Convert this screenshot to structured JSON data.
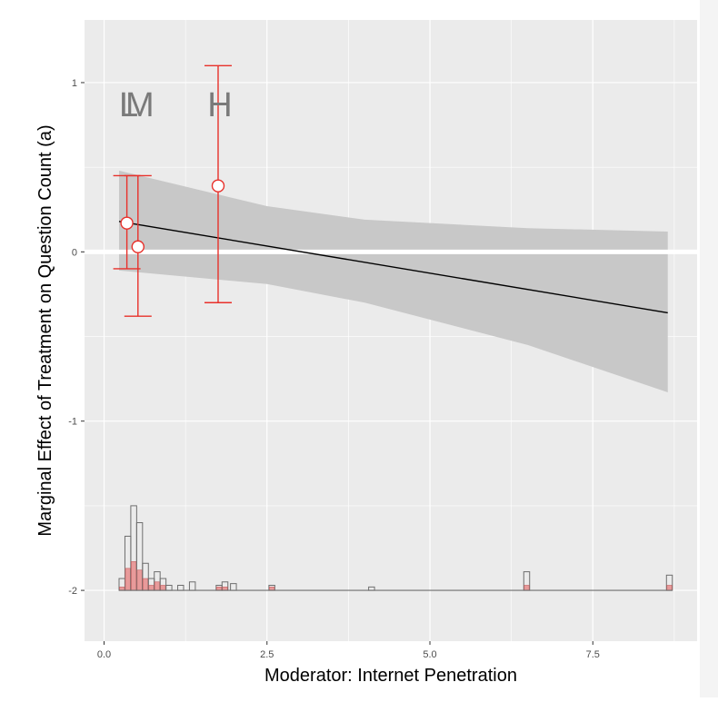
{
  "chart_data": {
    "type": "line",
    "xlabel": "Moderator: Internet Penetration",
    "ylabel": "Marginal Effect of Treatment on Question Count (a)",
    "xlim": [
      -0.3,
      9.1
    ],
    "ylim": [
      -2.3,
      1.37
    ],
    "x_ticks": [
      0.0,
      2.5,
      5.0,
      7.5
    ],
    "x_tick_labels": [
      "0.0",
      "2.5",
      "5.0",
      "7.5"
    ],
    "y_ticks": [
      -2,
      -1,
      0,
      1
    ],
    "y_tick_labels": [
      "-2",
      "-1",
      "0",
      "1"
    ],
    "grid": true,
    "background": "#EBEBEB",
    "fitted_line": {
      "x": [
        0.23,
        8.65
      ],
      "y": [
        0.18,
        -0.36
      ],
      "color": "#000000"
    },
    "confidence_band": {
      "x": [
        0.23,
        2.5,
        4.0,
        6.5,
        8.65
      ],
      "upper": [
        0.48,
        0.27,
        0.19,
        0.14,
        0.12
      ],
      "lower": [
        -0.11,
        -0.19,
        -0.3,
        -0.55,
        -0.83
      ],
      "color": "#C8C8C8"
    },
    "bin_estimates": {
      "color": "#E8302A",
      "points": [
        {
          "label": "L",
          "x": 0.35,
          "y": 0.17,
          "ci": [
            -0.1,
            0.45
          ]
        },
        {
          "label": "M",
          "x": 0.52,
          "y": 0.03,
          "ci": [
            -0.38,
            0.45
          ]
        },
        {
          "label": "H",
          "x": 1.75,
          "y": 0.39,
          "ci": [
            -0.3,
            1.1
          ]
        }
      ]
    },
    "bin_labels": [
      {
        "text": "L",
        "x": 0.35
      },
      {
        "text": "M",
        "x": 0.52
      },
      {
        "text": "H",
        "x": 1.75
      }
    ],
    "zero_line": 0,
    "histogram": {
      "baseline": -2,
      "bin_width": 0.09,
      "bins": [
        {
          "x": 0.23,
          "total": 0.07,
          "treated": 0.02
        },
        {
          "x": 0.32,
          "total": 0.32,
          "treated": 0.13
        },
        {
          "x": 0.41,
          "total": 0.5,
          "treated": 0.17
        },
        {
          "x": 0.5,
          "total": 0.4,
          "treated": 0.12
        },
        {
          "x": 0.59,
          "total": 0.16,
          "treated": 0.07
        },
        {
          "x": 0.68,
          "total": 0.07,
          "treated": 0.03
        },
        {
          "x": 0.77,
          "total": 0.11,
          "treated": 0.05
        },
        {
          "x": 0.86,
          "total": 0.07,
          "treated": 0.03
        },
        {
          "x": 0.95,
          "total": 0.03,
          "treated": 0.0
        },
        {
          "x": 1.13,
          "total": 0.03,
          "treated": 0.0
        },
        {
          "x": 1.31,
          "total": 0.05,
          "treated": 0.0
        },
        {
          "x": 1.72,
          "total": 0.03,
          "treated": 0.02
        },
        {
          "x": 1.81,
          "total": 0.05,
          "treated": 0.02
        },
        {
          "x": 1.94,
          "total": 0.04,
          "treated": 0.0
        },
        {
          "x": 2.53,
          "total": 0.03,
          "treated": 0.02
        },
        {
          "x": 4.06,
          "total": 0.02,
          "treated": 0.0
        },
        {
          "x": 6.44,
          "total": 0.11,
          "treated": 0.03
        },
        {
          "x": 8.63,
          "total": 0.09,
          "treated": 0.03
        }
      ]
    }
  }
}
